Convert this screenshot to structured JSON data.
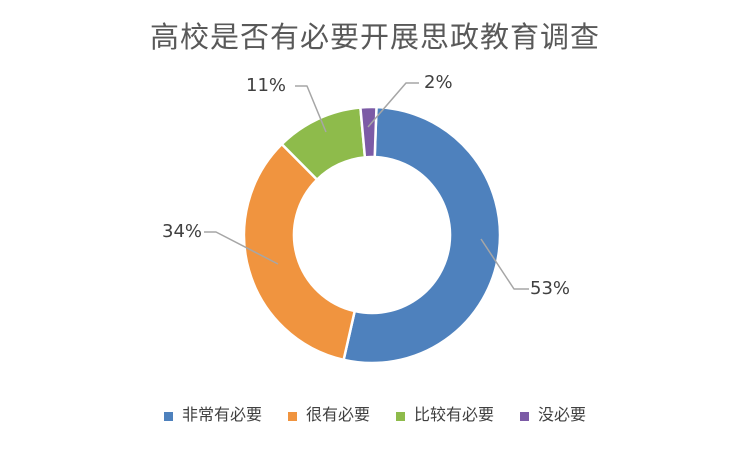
{
  "chart_data": {
    "type": "pie",
    "subtype": "donut",
    "title": "高校是否有必要开展思政教育调查",
    "slices": [
      {
        "name": "非常有必要",
        "value": 53,
        "label": "53%",
        "color": "#4E81BD"
      },
      {
        "name": "很有必要",
        "value": 34,
        "label": "34%",
        "color": "#F0943F"
      },
      {
        "name": "比较有必要",
        "value": 11,
        "label": "11%",
        "color": "#8EBB4B"
      },
      {
        "name": "没必要",
        "value": 2,
        "label": "2%",
        "color": "#7C5BA6"
      }
    ],
    "start_angle_deg": 2,
    "direction": "clockwise",
    "hole_ratio": 0.61,
    "legend_position": "bottom",
    "leader_line_color": "#A6A6A6",
    "title_color": "#595959",
    "label_color": "#404040",
    "background_color": "#FFFFFF"
  }
}
